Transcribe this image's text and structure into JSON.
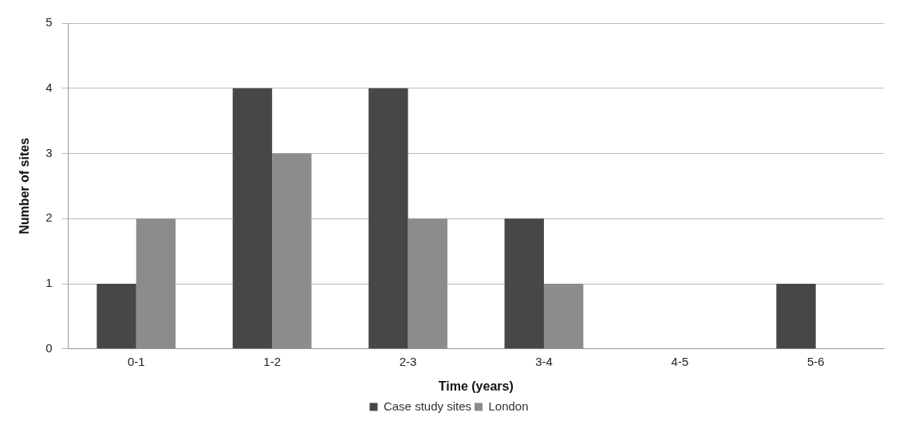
{
  "chart_data": {
    "type": "bar",
    "xlabel": "Time (years)",
    "ylabel": "Number of sites",
    "categories": [
      "0-1",
      "1-2",
      "2-3",
      "3-4",
      "4-5",
      "5-6"
    ],
    "series": [
      {
        "name": "Case study sites",
        "color": "#474747",
        "values": [
          1,
          4,
          4,
          2,
          0,
          1
        ]
      },
      {
        "name": "London",
        "color": "#8c8c8c",
        "values": [
          2,
          3,
          2,
          1,
          0,
          0
        ]
      }
    ],
    "ylim": [
      0,
      5
    ],
    "yticks": [
      0,
      1,
      2,
      3,
      4,
      5
    ],
    "grid": "y",
    "legend": "bottom"
  }
}
